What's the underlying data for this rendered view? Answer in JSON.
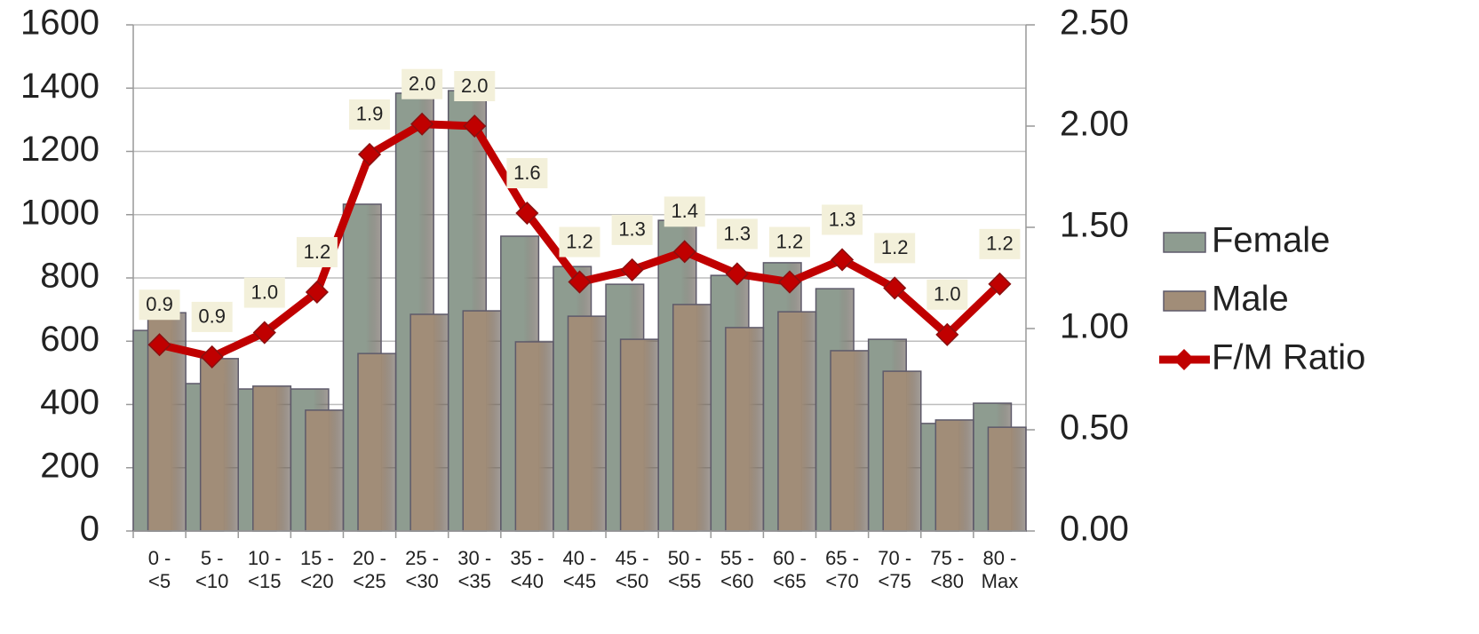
{
  "chart_data": {
    "type": "bar",
    "categories": [
      "0 -\n<5",
      "5 -\n<10",
      "10 -\n<15",
      "15 -\n<20",
      "20 -\n<25",
      "25 -\n<30",
      "30 -\n<35",
      "35 -\n<40",
      "40 -\n<45",
      "45 -\n<50",
      "50 -\n<55",
      "55 -\n<60",
      "60 -\n<65",
      "65 -\n<70",
      "70 -\n<75",
      "75 -\n<80",
      "80 -\nMax"
    ],
    "series": [
      {
        "name": "Female",
        "color": "#8e9c90",
        "values": [
          634,
          466,
          449,
          449,
          1033,
          1384,
          1392,
          932,
          836,
          780,
          982,
          808,
          848,
          766,
          606,
          340,
          404
        ]
      },
      {
        "name": "Male",
        "color": "#a18d78",
        "values": [
          690,
          545,
          458,
          382,
          561,
          685,
          696,
          598,
          679,
          606,
          716,
          643,
          693,
          570,
          505,
          351,
          328
        ]
      },
      {
        "name": "F/M Ratio",
        "color": "#c00000",
        "type": "line",
        "axis": "y2",
        "values": [
          0.92,
          0.86,
          0.98,
          1.18,
          1.86,
          2.01,
          2.0,
          1.57,
          1.23,
          1.29,
          1.38,
          1.27,
          1.23,
          1.34,
          1.2,
          0.97,
          1.22
        ],
        "value_labels": [
          "0.9",
          "0.9",
          "1.0",
          "1.2",
          "1.9",
          "2.0",
          "2.0",
          "1.6",
          "1.2",
          "1.3",
          "1.4",
          "1.3",
          "1.2",
          "1.3",
          "1.2",
          "1.0",
          "1.2"
        ]
      }
    ],
    "ylim": [
      0,
      1600
    ],
    "yticks": [
      0,
      200,
      400,
      600,
      800,
      1000,
      1200,
      1400,
      1600
    ],
    "y2lim": [
      0,
      2.5
    ],
    "y2ticks": [
      {
        "value": 0,
        "label": "0.00"
      },
      {
        "value": 0.5,
        "label": "0.50"
      },
      {
        "value": 1,
        "label": "1.00"
      },
      {
        "value": 1.5,
        "label": "1.50"
      },
      {
        "value": 2,
        "label": "2.00"
      },
      {
        "value": 2.5,
        "label": "2.50"
      }
    ],
    "grid": true,
    "legend": "right"
  }
}
